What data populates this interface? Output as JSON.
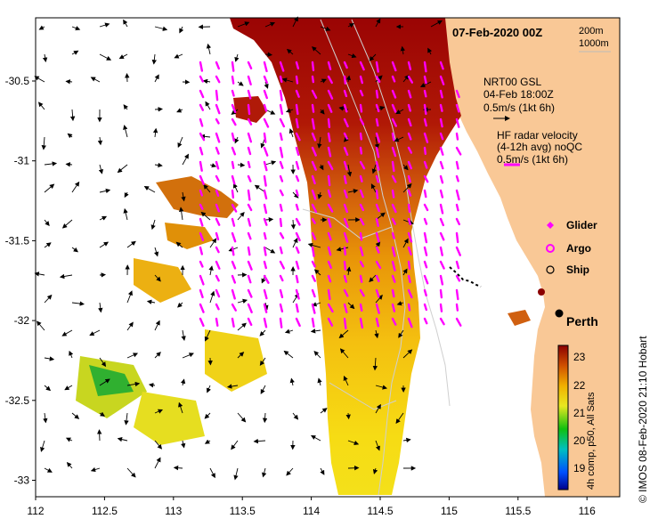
{
  "title": "07-Feb-2020 00Z",
  "isobaths": [
    "200m",
    "1000m"
  ],
  "axes": {
    "x_ticks": [
      "112",
      "112.5",
      "113",
      "113.5",
      "114",
      "114.5",
      "115",
      "115.5",
      "116"
    ],
    "y_ticks": [
      "-30.5",
      "-31",
      "-31.5",
      "-32",
      "-32.5",
      "-33"
    ]
  },
  "current_legend": {
    "model_lines": [
      "NRT00 GSL",
      "04-Feb 18:00Z",
      "0.5m/s (1kt 6h)"
    ],
    "radar_lines": [
      "HF radar velocity",
      "(4-12h avg) noQC",
      "0.5m/s (1kt 6h)"
    ]
  },
  "platform_legend": [
    {
      "label": "Glider",
      "color": "#ff00ff"
    },
    {
      "label": "Argo",
      "color": "#ff00ff"
    },
    {
      "label": "Ship",
      "color": "#000000"
    }
  ],
  "city": "Perth",
  "colorbar": {
    "ticks": [
      "23",
      "22",
      "21",
      "20",
      "19"
    ],
    "label": "4h comp, p50, All Sats"
  },
  "credit": "©  IMOS 08-Feb-2020 21:10 Hobart",
  "colors": {
    "land": "#f9c896",
    "warm": "#a00000",
    "arrow_model": "#000000",
    "arrow_radar": "#ff00ff"
  }
}
